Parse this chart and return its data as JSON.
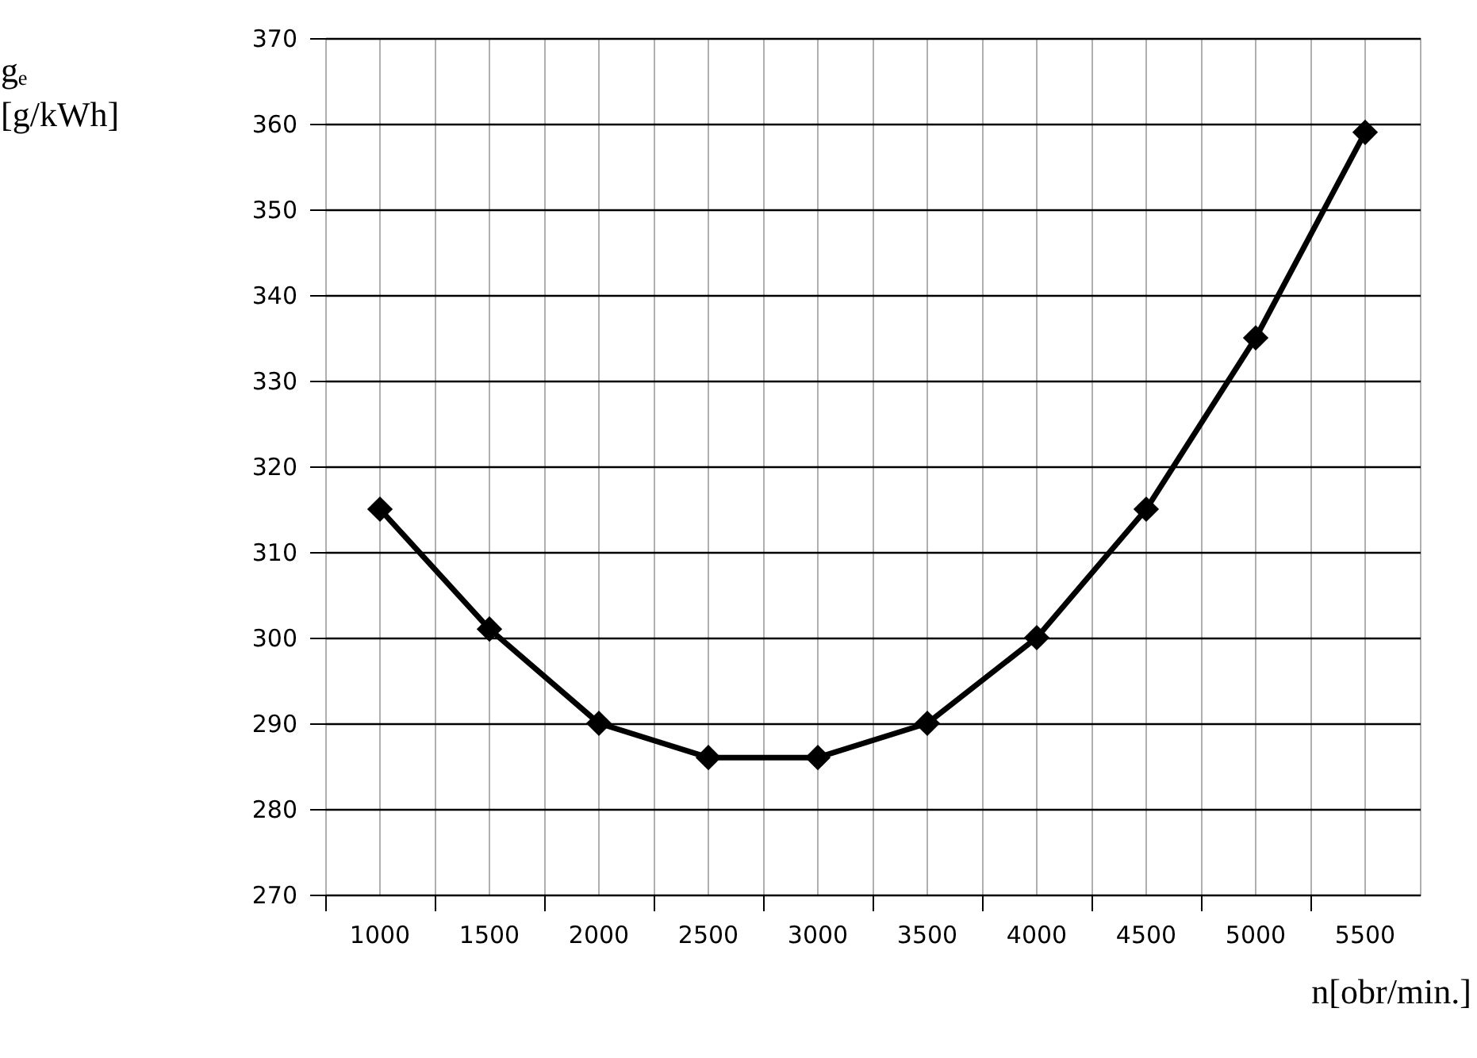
{
  "chart_data": {
    "type": "line",
    "xlabel": "n[obr/min.]",
    "ylabel": "gₑ\n[g/kWh]",
    "categories": [
      "1000",
      "1500",
      "2000",
      "2500",
      "3000",
      "3500",
      "4000",
      "4500",
      "5000",
      "5500"
    ],
    "series": [
      {
        "color": "#000000",
        "values": [
          315,
          301,
          290,
          286,
          286,
          290,
          300,
          315,
          335,
          359
        ]
      }
    ],
    "ylim": [
      270,
      370
    ],
    "yticks": [
      270,
      280,
      290,
      300,
      310,
      320,
      330,
      340,
      350,
      360,
      370
    ],
    "grid": true,
    "marker": "diamond",
    "line_style": "solid"
  }
}
